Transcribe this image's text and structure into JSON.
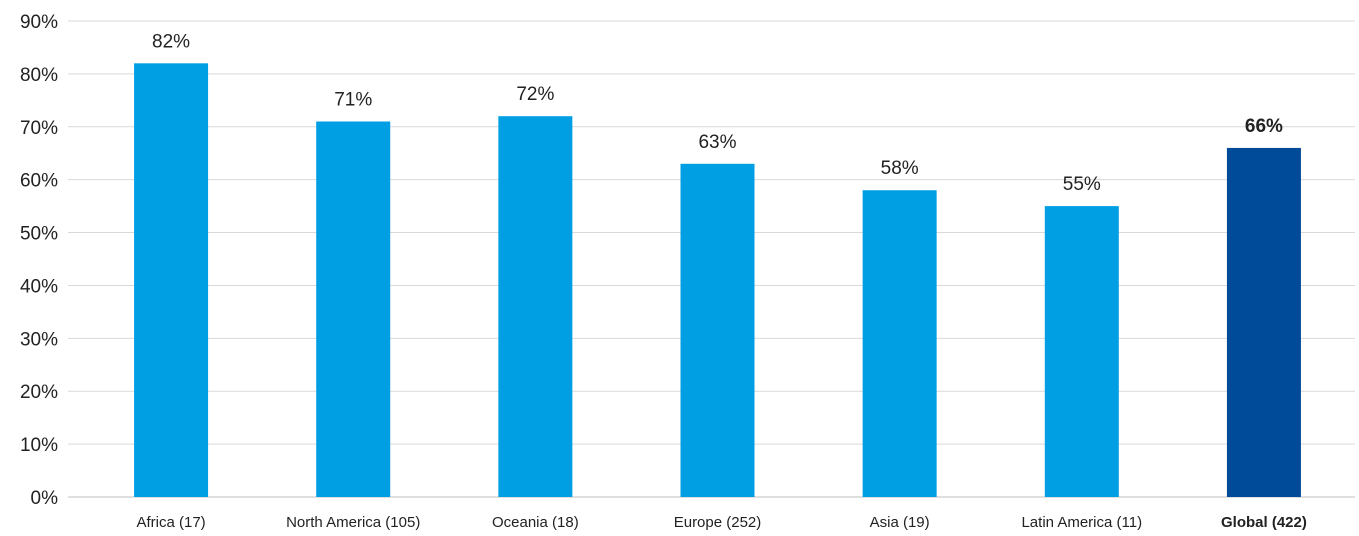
{
  "chart_data": {
    "type": "bar",
    "categories": [
      "Africa (17)",
      "North America (105)",
      "Oceania (18)",
      "Europe (252)",
      "Asia (19)",
      "Latin America (11)",
      "Global (422)"
    ],
    "values": [
      82,
      71,
      72,
      63,
      58,
      55,
      66
    ],
    "data_labels": [
      "82%",
      "71%",
      "72%",
      "63%",
      "58%",
      "55%",
      "66%"
    ],
    "y_ticks": [
      "0%",
      "10%",
      "20%",
      "30%",
      "40%",
      "50%",
      "60%",
      "70%",
      "80%",
      "90%"
    ],
    "ylim": [
      0,
      90
    ],
    "grid": true,
    "colors": {
      "default": "#009fe3",
      "highlight": "#004a9a"
    },
    "highlight_index": 6
  }
}
